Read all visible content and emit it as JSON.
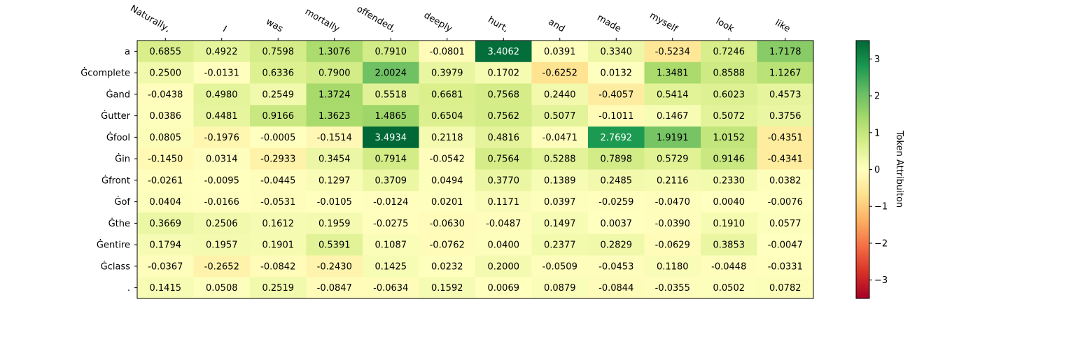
{
  "chart_data": {
    "type": "heatmap",
    "title": "",
    "x_labels": [
      "Naturally,",
      "I",
      "was",
      "mortally",
      "offended,",
      "deeply",
      "hurt,",
      "and",
      "made",
      "myself",
      "look",
      "like"
    ],
    "y_labels": [
      "a",
      "Ġcomplete",
      "Ġand",
      "Ġutter",
      "Ġfool",
      "Ġin",
      "Ġfront",
      "Ġof",
      "Ġthe",
      "Ġentire",
      "Ġclass",
      "."
    ],
    "values": [
      [
        0.6855,
        0.4922,
        0.7598,
        1.3076,
        0.791,
        -0.0801,
        3.4062,
        0.0391,
        0.334,
        -0.5234,
        0.7246,
        1.7178
      ],
      [
        0.25,
        -0.0131,
        0.6336,
        0.79,
        2.0024,
        0.3979,
        0.1702,
        -0.6252,
        0.0132,
        1.3481,
        0.8588,
        1.1267
      ],
      [
        -0.0438,
        0.498,
        0.2549,
        1.3724,
        0.5518,
        0.6681,
        0.7568,
        0.244,
        -0.4057,
        0.5414,
        0.6023,
        0.4573
      ],
      [
        0.0386,
        0.4481,
        0.9166,
        1.3623,
        1.4865,
        0.6504,
        0.7562,
        0.5077,
        -0.1011,
        0.1467,
        0.5072,
        0.3756
      ],
      [
        0.0805,
        -0.1976,
        -0.0005,
        -0.1514,
        3.4934,
        0.2118,
        0.4816,
        -0.0471,
        2.7692,
        1.9191,
        1.0152,
        -0.4351
      ],
      [
        -0.145,
        0.0314,
        -0.2933,
        0.3454,
        0.7914,
        -0.0542,
        0.7564,
        0.5288,
        0.7898,
        0.5729,
        0.9146,
        -0.4341
      ],
      [
        -0.0261,
        -0.0095,
        -0.0445,
        0.1297,
        0.3709,
        0.0494,
        0.377,
        0.1389,
        0.2485,
        0.2116,
        0.233,
        0.0382
      ],
      [
        0.0404,
        -0.0166,
        -0.0531,
        -0.0105,
        -0.0124,
        0.0201,
        0.1171,
        0.0397,
        -0.0259,
        -0.047,
        0.004,
        -0.0076
      ],
      [
        0.3669,
        0.2506,
        0.1612,
        0.1959,
        -0.0275,
        -0.063,
        -0.0487,
        0.1497,
        0.0037,
        -0.039,
        0.191,
        0.0577
      ],
      [
        0.1794,
        0.1957,
        0.1901,
        0.5391,
        0.1087,
        -0.0762,
        0.04,
        0.2377,
        0.2829,
        -0.0629,
        0.3853,
        -0.0047
      ],
      [
        -0.0367,
        -0.2652,
        -0.0842,
        -0.243,
        0.1425,
        0.0232,
        0.2,
        -0.0509,
        -0.0453,
        0.118,
        -0.0448,
        -0.0331
      ],
      [
        0.1415,
        0.0508,
        0.2519,
        -0.0847,
        -0.0634,
        0.1592,
        0.0069,
        0.0879,
        -0.0844,
        -0.0355,
        0.0502,
        0.0782
      ]
    ],
    "value_format": "4 decimals",
    "colormap": "RdYlGn",
    "vmin": -3.5,
    "vmax": 3.5,
    "x_axis_position": "top",
    "x_label_rotation_deg": 30,
    "colorbar": {
      "label": "Token Attribuiton",
      "ticks": [
        -3,
        -2,
        -1,
        0,
        1,
        2,
        3
      ],
      "tick_labels": [
        "−3",
        "−2",
        "−1",
        "0",
        "1",
        "2",
        "3"
      ],
      "placement": "right"
    }
  }
}
